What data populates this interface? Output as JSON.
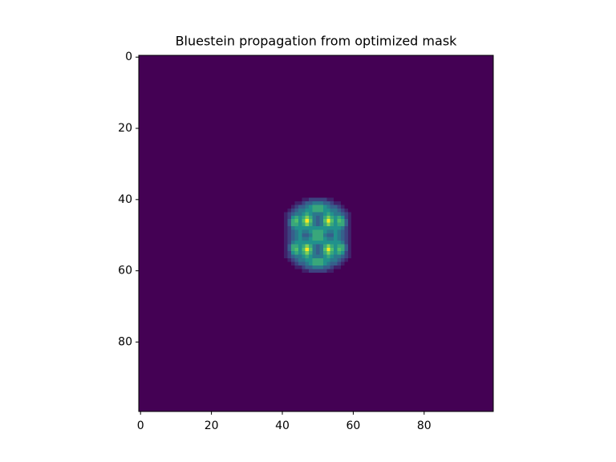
{
  "chart_data": {
    "type": "image",
    "title": "Bluestein propagation from optimized mask",
    "cmap": "viridis",
    "xlim": [
      -0.5,
      99.5
    ],
    "ylim": [
      99.5,
      -0.5
    ],
    "xticks": [
      0,
      20,
      40,
      60,
      80
    ],
    "yticks": [
      0,
      20,
      40,
      60,
      80
    ],
    "zlim": [
      0,
      1
    ],
    "x": [
      40,
      41,
      42,
      43,
      44,
      45,
      46,
      47,
      48,
      49,
      50,
      51,
      52,
      53,
      54,
      55,
      56,
      57,
      58,
      59,
      60
    ],
    "y": [
      40,
      41,
      42,
      43,
      44,
      45,
      46,
      47,
      48,
      49,
      50,
      51,
      52,
      53,
      54,
      55,
      56,
      57,
      58,
      59,
      60
    ],
    "z": [
      [
        0,
        0,
        0,
        0,
        0,
        0,
        0.1,
        0.1,
        0.2,
        0.2,
        0.2,
        0.2,
        0.2,
        0.1,
        0.1,
        0,
        0,
        0,
        0,
        0,
        0
      ],
      [
        0,
        0,
        0,
        0,
        0.1,
        0.1,
        0.2,
        0.3,
        0.3,
        0.4,
        0.4,
        0.4,
        0.3,
        0.3,
        0.2,
        0.1,
        0.1,
        0,
        0,
        0,
        0
      ],
      [
        0,
        0,
        0,
        0.1,
        0.2,
        0.3,
        0.3,
        0.4,
        0.5,
        0.6,
        0.6,
        0.6,
        0.5,
        0.4,
        0.3,
        0.3,
        0.2,
        0.1,
        0,
        0,
        0
      ],
      [
        0,
        0,
        0.1,
        0.2,
        0.3,
        0.4,
        0.4,
        0.5,
        0.5,
        0.6,
        0.6,
        0.6,
        0.5,
        0.5,
        0.4,
        0.4,
        0.3,
        0.2,
        0.1,
        0,
        0
      ],
      [
        0,
        0.1,
        0.2,
        0.3,
        0.4,
        0.4,
        0.5,
        0.6,
        0.5,
        0.4,
        0.4,
        0.4,
        0.5,
        0.6,
        0.5,
        0.4,
        0.4,
        0.3,
        0.2,
        0.1,
        0
      ],
      [
        0,
        0.1,
        0.2,
        0.5,
        0.6,
        0.5,
        0.6,
        0.8,
        0.6,
        0.4,
        0.3,
        0.4,
        0.6,
        0.8,
        0.6,
        0.5,
        0.6,
        0.5,
        0.2,
        0.1,
        0
      ],
      [
        0,
        0.1,
        0.3,
        0.6,
        0.7,
        0.5,
        0.7,
        1.0,
        0.7,
        0.4,
        0.3,
        0.4,
        0.7,
        1.0,
        0.7,
        0.5,
        0.7,
        0.6,
        0.3,
        0.1,
        0
      ],
      [
        0,
        0.1,
        0.3,
        0.6,
        0.6,
        0.5,
        0.6,
        0.8,
        0.6,
        0.4,
        0.3,
        0.4,
        0.6,
        0.8,
        0.6,
        0.5,
        0.6,
        0.6,
        0.3,
        0.1,
        0
      ],
      [
        0,
        0.1,
        0.2,
        0.4,
        0.5,
        0.5,
        0.5,
        0.5,
        0.5,
        0.5,
        0.5,
        0.5,
        0.5,
        0.5,
        0.5,
        0.5,
        0.5,
        0.4,
        0.2,
        0.1,
        0
      ],
      [
        0,
        0.1,
        0.2,
        0.3,
        0.4,
        0.5,
        0.4,
        0.4,
        0.5,
        0.6,
        0.6,
        0.6,
        0.5,
        0.4,
        0.4,
        0.5,
        0.4,
        0.3,
        0.2,
        0.1,
        0
      ],
      [
        0,
        0.1,
        0.2,
        0.3,
        0.4,
        0.5,
        0.3,
        0.3,
        0.4,
        0.6,
        0.6,
        0.6,
        0.4,
        0.3,
        0.3,
        0.5,
        0.4,
        0.3,
        0.2,
        0.1,
        0
      ],
      [
        0,
        0.1,
        0.2,
        0.3,
        0.4,
        0.5,
        0.4,
        0.4,
        0.5,
        0.6,
        0.6,
        0.6,
        0.5,
        0.4,
        0.4,
        0.5,
        0.4,
        0.3,
        0.2,
        0.1,
        0
      ],
      [
        0,
        0.1,
        0.2,
        0.4,
        0.5,
        0.5,
        0.5,
        0.5,
        0.5,
        0.5,
        0.5,
        0.5,
        0.5,
        0.5,
        0.5,
        0.5,
        0.5,
        0.4,
        0.2,
        0.1,
        0
      ],
      [
        0,
        0.1,
        0.3,
        0.6,
        0.6,
        0.5,
        0.6,
        0.8,
        0.6,
        0.4,
        0.3,
        0.4,
        0.6,
        0.8,
        0.6,
        0.5,
        0.6,
        0.6,
        0.3,
        0.1,
        0
      ],
      [
        0,
        0.1,
        0.3,
        0.6,
        0.7,
        0.5,
        0.7,
        1.0,
        0.7,
        0.4,
        0.3,
        0.4,
        0.7,
        1.0,
        0.7,
        0.5,
        0.7,
        0.6,
        0.3,
        0.1,
        0
      ],
      [
        0,
        0.1,
        0.2,
        0.5,
        0.6,
        0.5,
        0.6,
        0.8,
        0.6,
        0.4,
        0.3,
        0.4,
        0.6,
        0.8,
        0.6,
        0.5,
        0.6,
        0.5,
        0.2,
        0.1,
        0
      ],
      [
        0,
        0.1,
        0.2,
        0.3,
        0.4,
        0.4,
        0.5,
        0.6,
        0.5,
        0.4,
        0.4,
        0.4,
        0.5,
        0.6,
        0.5,
        0.4,
        0.4,
        0.3,
        0.2,
        0.1,
        0
      ],
      [
        0,
        0,
        0.1,
        0.2,
        0.3,
        0.4,
        0.4,
        0.5,
        0.5,
        0.6,
        0.6,
        0.6,
        0.5,
        0.5,
        0.4,
        0.4,
        0.3,
        0.2,
        0.1,
        0,
        0
      ],
      [
        0,
        0,
        0,
        0.1,
        0.2,
        0.3,
        0.3,
        0.4,
        0.5,
        0.6,
        0.6,
        0.6,
        0.5,
        0.4,
        0.3,
        0.3,
        0.2,
        0.1,
        0,
        0,
        0
      ],
      [
        0,
        0,
        0,
        0,
        0.1,
        0.1,
        0.2,
        0.3,
        0.3,
        0.4,
        0.4,
        0.4,
        0.3,
        0.3,
        0.2,
        0.1,
        0.1,
        0,
        0,
        0,
        0
      ],
      [
        0,
        0,
        0,
        0,
        0,
        0,
        0.1,
        0.1,
        0.2,
        0.2,
        0.2,
        0.2,
        0.2,
        0.1,
        0.1,
        0,
        0,
        0,
        0,
        0,
        0
      ]
    ]
  }
}
